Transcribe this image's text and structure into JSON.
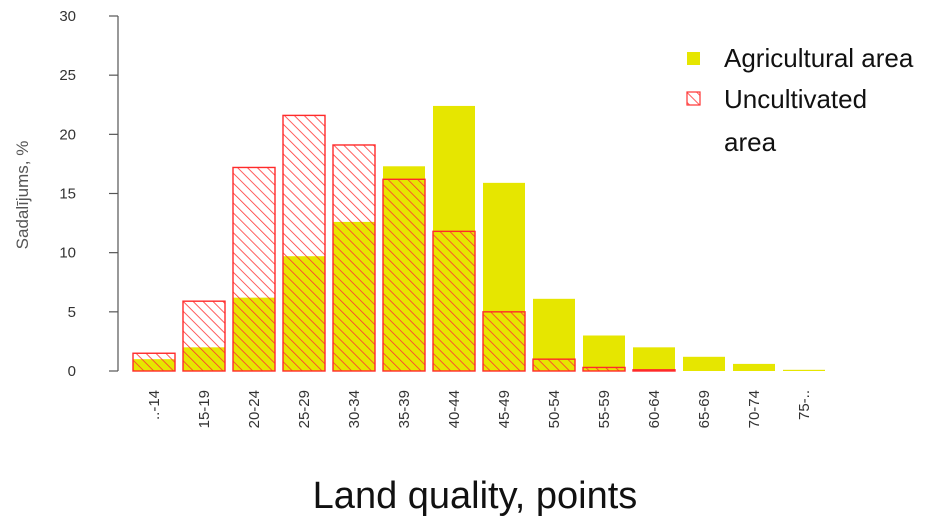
{
  "chart_data": {
    "type": "bar",
    "categories": [
      "..-14",
      "15-19",
      "20-24",
      "25-29",
      "30-34",
      "35-39",
      "40-44",
      "45-49",
      "50-54",
      "55-59",
      "60-64",
      "65-69",
      "70-74",
      "75-.."
    ],
    "series": [
      {
        "name": "Agricultural area",
        "values": [
          1.0,
          2.0,
          6.2,
          9.7,
          12.6,
          17.3,
          22.4,
          15.9,
          6.1,
          3.0,
          2.0,
          1.2,
          0.6,
          0.1
        ],
        "color": "#e6e600",
        "fill": "solid"
      },
      {
        "name": "Uncultivated area",
        "name_lines": [
          "Uncultivated",
          "area"
        ],
        "values": [
          1.5,
          5.9,
          17.2,
          21.6,
          19.1,
          16.2,
          11.8,
          5.0,
          1.0,
          0.3,
          0.1,
          0.0,
          0.0,
          0.0
        ],
        "color": "#ff0000",
        "fill": "hatched"
      }
    ],
    "yticks": [
      "0",
      "5",
      "10",
      "15",
      "20",
      "25",
      "30"
    ],
    "ytick_values": [
      0,
      5,
      10,
      15,
      20,
      25,
      30
    ],
    "ylim": [
      0,
      30
    ],
    "ylabel": "Sadalījums, %",
    "xlabel": "Land quality, points",
    "legend_position": "top-right",
    "grid": false
  }
}
